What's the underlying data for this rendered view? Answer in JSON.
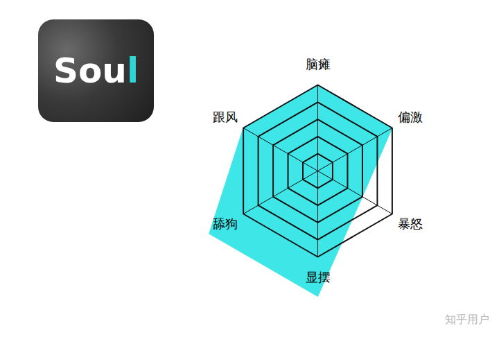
{
  "chart_data": {
    "type": "radar",
    "categories": [
      "脑瘫",
      "偏激",
      "暴怒",
      "显摆",
      "舔狗",
      "跟风"
    ],
    "values": [
      5,
      5,
      3,
      7.3,
      7.3,
      5
    ],
    "color": "#3ee6e8",
    "ylim": [
      0,
      7.5
    ],
    "yticks": [
      1,
      2,
      3,
      4,
      5
    ],
    "grid": true,
    "tick_labels": false
  },
  "icon_text_parts": [
    "Sou",
    "l"
  ],
  "watermark": "知乎用户"
}
